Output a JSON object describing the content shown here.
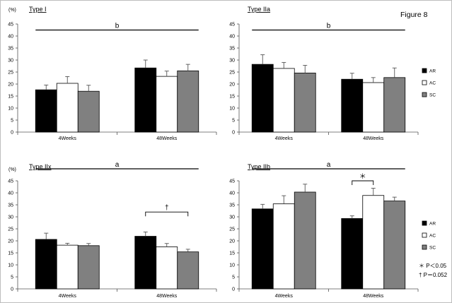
{
  "figure_label": "Figure 8",
  "colors": {
    "AR": "#000000",
    "AC": "#ffffff",
    "SC": "#808080",
    "edge": "#000000"
  },
  "legend": [
    "AR",
    "AC",
    "SC"
  ],
  "footnotes": [
    "＊ P＜0.05",
    "† P＝0.052"
  ],
  "chart_data": [
    {
      "type": "bar",
      "title": "Type I",
      "ylabel": "(%)",
      "ylim": [
        0,
        45
      ],
      "yticks": [
        0,
        5,
        10,
        15,
        20,
        25,
        30,
        35,
        40,
        45
      ],
      "categories": [
        "4Weeks",
        "48Weeks"
      ],
      "series": [
        {
          "name": "AR",
          "values": [
            17.6,
            26.7
          ],
          "errors": [
            2.0,
            3.3
          ]
        },
        {
          "name": "AC",
          "values": [
            20.3,
            23.2
          ],
          "errors": [
            2.8,
            2.2
          ]
        },
        {
          "name": "SC",
          "values": [
            17.0,
            25.5
          ],
          "errors": [
            2.5,
            2.7
          ]
        }
      ],
      "annotations": [
        {
          "label": "b",
          "from": "4Weeks",
          "to": "48Weeks",
          "y": 42.5
        }
      ]
    },
    {
      "type": "bar",
      "title": "Type IIa",
      "ylabel": "",
      "ylim": [
        0,
        45
      ],
      "yticks": [
        0,
        5,
        10,
        15,
        20,
        25,
        30,
        35,
        40,
        45
      ],
      "categories": [
        "4Weeks",
        "48Weeks"
      ],
      "series": [
        {
          "name": "AR",
          "values": [
            28.2,
            22.0
          ],
          "errors": [
            4.0,
            2.5
          ]
        },
        {
          "name": "AC",
          "values": [
            26.5,
            20.6
          ],
          "errors": [
            2.5,
            2.1
          ]
        },
        {
          "name": "SC",
          "values": [
            24.6,
            22.7
          ],
          "errors": [
            3.2,
            4.0
          ]
        }
      ],
      "annotations": [
        {
          "label": "b",
          "from": "4Weeks",
          "to": "48Weeks",
          "y": 42.5
        }
      ]
    },
    {
      "type": "bar",
      "title": "Type IIx",
      "ylabel": "(%)",
      "ylim": [
        0,
        45
      ],
      "yticks": [
        0,
        5,
        10,
        15,
        20,
        25,
        30,
        35,
        40,
        45
      ],
      "categories": [
        "4Weeks",
        "48Weeks"
      ],
      "series": [
        {
          "name": "AR",
          "values": [
            20.6,
            21.9
          ],
          "errors": [
            2.6,
            1.8
          ]
        },
        {
          "name": "AC",
          "values": [
            18.2,
            17.5
          ],
          "errors": [
            0.8,
            1.4
          ]
        },
        {
          "name": "SC",
          "values": [
            18.0,
            15.4
          ],
          "errors": [
            0.9,
            1.1
          ]
        }
      ],
      "annotations": [
        {
          "label": "a",
          "from": "4Weeks",
          "to": "48Weeks",
          "y": 50.0
        },
        {
          "label": "†",
          "bracket": true,
          "category": "48Weeks",
          "from_series": "AR",
          "to_series": "SC",
          "y": 32.0
        }
      ]
    },
    {
      "type": "bar",
      "title": "Type IIb",
      "ylabel": "",
      "ylim": [
        0,
        45
      ],
      "yticks": [
        0,
        5,
        10,
        15,
        20,
        25,
        30,
        35,
        40,
        45
      ],
      "categories": [
        "4Weeks",
        "48Weeks"
      ],
      "series": [
        {
          "name": "AR",
          "values": [
            33.3,
            29.3
          ],
          "errors": [
            1.9,
            1.1
          ]
        },
        {
          "name": "AC",
          "values": [
            35.4,
            38.9
          ],
          "errors": [
            3.4,
            3.0
          ]
        },
        {
          "name": "SC",
          "values": [
            40.3,
            36.6
          ],
          "errors": [
            3.3,
            1.6
          ]
        }
      ],
      "annotations": [
        {
          "label": "a",
          "from": "4Weeks",
          "to": "48Weeks",
          "y": 50.0
        },
        {
          "label": "＊",
          "bracket": true,
          "category": "48Weeks",
          "from_series": "AR",
          "to_series": "AC",
          "y": 45.0
        }
      ]
    }
  ]
}
